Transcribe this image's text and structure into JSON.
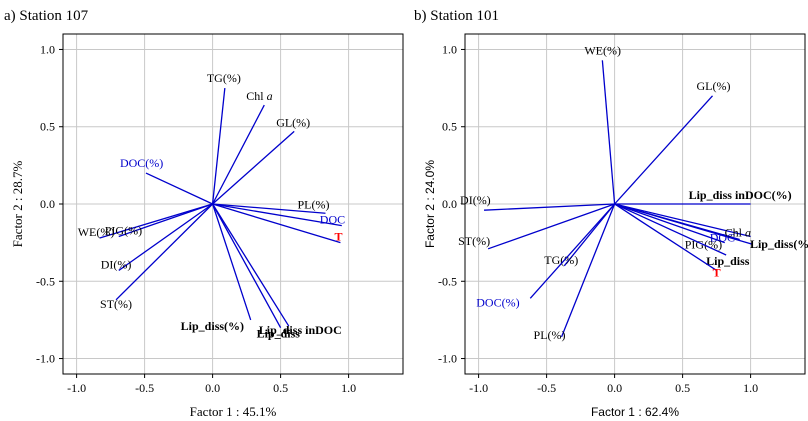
{
  "chart_data": [
    {
      "type": "biplot",
      "title": "a) Station 107",
      "xlabel": "Factor 1 : 45.1%",
      "ylabel": "Factor 2 : 28.7%",
      "xlim": [
        -1.1,
        1.4
      ],
      "ylim": [
        -1.1,
        1.1
      ],
      "xticks": [
        -1.0,
        -0.5,
        0.0,
        0.5,
        1.0
      ],
      "yticks": [
        -1.0,
        -0.5,
        0.0,
        0.5,
        1.0
      ],
      "grid": true,
      "vectors": [
        {
          "label": "TG(%)",
          "x": 0.09,
          "y": 0.75,
          "color": "#000000",
          "bold": false
        },
        {
          "label": "Chl a",
          "x": 0.38,
          "y": 0.64,
          "color": "#000000",
          "bold": false
        },
        {
          "label": "GL(%)",
          "x": 0.6,
          "y": 0.47,
          "color": "#000000",
          "bold": false
        },
        {
          "label": "DOC(%)",
          "x": -0.49,
          "y": 0.2,
          "color": "#0000cc",
          "bold": false
        },
        {
          "label": "PL(%)",
          "x": 0.83,
          "y": -0.06,
          "color": "#000000",
          "bold": false
        },
        {
          "label": "DOC",
          "x": 0.95,
          "y": -0.14,
          "color": "#0000cc",
          "bold": false
        },
        {
          "label": "T",
          "x": 0.94,
          "y": -0.25,
          "color": "#ff0000",
          "bold": true
        },
        {
          "label": "WE(%)",
          "x": -0.83,
          "y": -0.22,
          "color": "#000000",
          "bold": false
        },
        {
          "label": "PIG(%)",
          "x": -0.69,
          "y": -0.21,
          "color": "#000000",
          "bold": false
        },
        {
          "label": "DI(%)",
          "x": -0.69,
          "y": -0.43,
          "color": "#000000",
          "bold": false
        },
        {
          "label": "ST(%)",
          "x": -0.71,
          "y": -0.62,
          "color": "#000000",
          "bold": false
        },
        {
          "label": "Lip_diss(%)",
          "x": 0.28,
          "y": -0.75,
          "color": "#000000",
          "bold": true
        },
        {
          "label": "Lip_diss",
          "x": 0.5,
          "y": -0.8,
          "color": "#000000",
          "bold": true
        },
        {
          "label": "Lip_diss inDOC",
          "x": 0.56,
          "y": -0.79,
          "color": "#000000",
          "bold": true
        }
      ]
    },
    {
      "type": "biplot",
      "title": "b) Station 101",
      "xlabel": "Factor 1 : 62.4%",
      "ylabel": "Factor 2 : 24.0%",
      "xlim": [
        -1.1,
        1.4
      ],
      "ylim": [
        -1.1,
        1.1
      ],
      "xticks": [
        -1.0,
        -0.5,
        0.0,
        0.5,
        1.0
      ],
      "yticks": [
        -1.0,
        -0.5,
        0.0,
        0.5,
        1.0
      ],
      "grid": true,
      "vectors": [
        {
          "label": "WE(%)",
          "x": -0.09,
          "y": 0.93,
          "color": "#000000",
          "bold": false
        },
        {
          "label": "GL(%)",
          "x": 0.72,
          "y": 0.7,
          "color": "#000000",
          "bold": false
        },
        {
          "label": "DI(%)",
          "x": -0.96,
          "y": -0.04,
          "color": "#000000",
          "bold": false
        },
        {
          "label": "ST(%)",
          "x": -0.93,
          "y": -0.29,
          "color": "#000000",
          "bold": false
        },
        {
          "label": "Lip_diss inDOC(%)",
          "x": 1.0,
          "y": 0.0,
          "color": "#000000",
          "bold": true
        },
        {
          "label": "DOC",
          "x": 0.92,
          "y": -0.23,
          "color": "#0000cc",
          "bold": false
        },
        {
          "label": "Chl a",
          "x": 1.0,
          "y": -0.21,
          "color": "#000000",
          "bold": false
        },
        {
          "label": "Lip_diss(%)",
          "x": 1.01,
          "y": -0.26,
          "color": "#000000",
          "bold": true
        },
        {
          "label": "PIG(%)",
          "x": 0.81,
          "y": -0.25,
          "color": "#000000",
          "bold": false
        },
        {
          "label": "Lip_diss",
          "x": 0.82,
          "y": -0.33,
          "color": "#000000",
          "bold": true
        },
        {
          "label": "T",
          "x": 0.75,
          "y": -0.43,
          "color": "#ff0000",
          "bold": true
        },
        {
          "label": "TG(%)",
          "x": -0.37,
          "y": -0.4,
          "color": "#000000",
          "bold": false
        },
        {
          "label": "DOC(%)",
          "x": -0.62,
          "y": -0.61,
          "color": "#0000cc",
          "bold": false
        },
        {
          "label": "PL(%)",
          "x": -0.39,
          "y": -0.86,
          "color": "#000000",
          "bold": false
        }
      ]
    }
  ]
}
